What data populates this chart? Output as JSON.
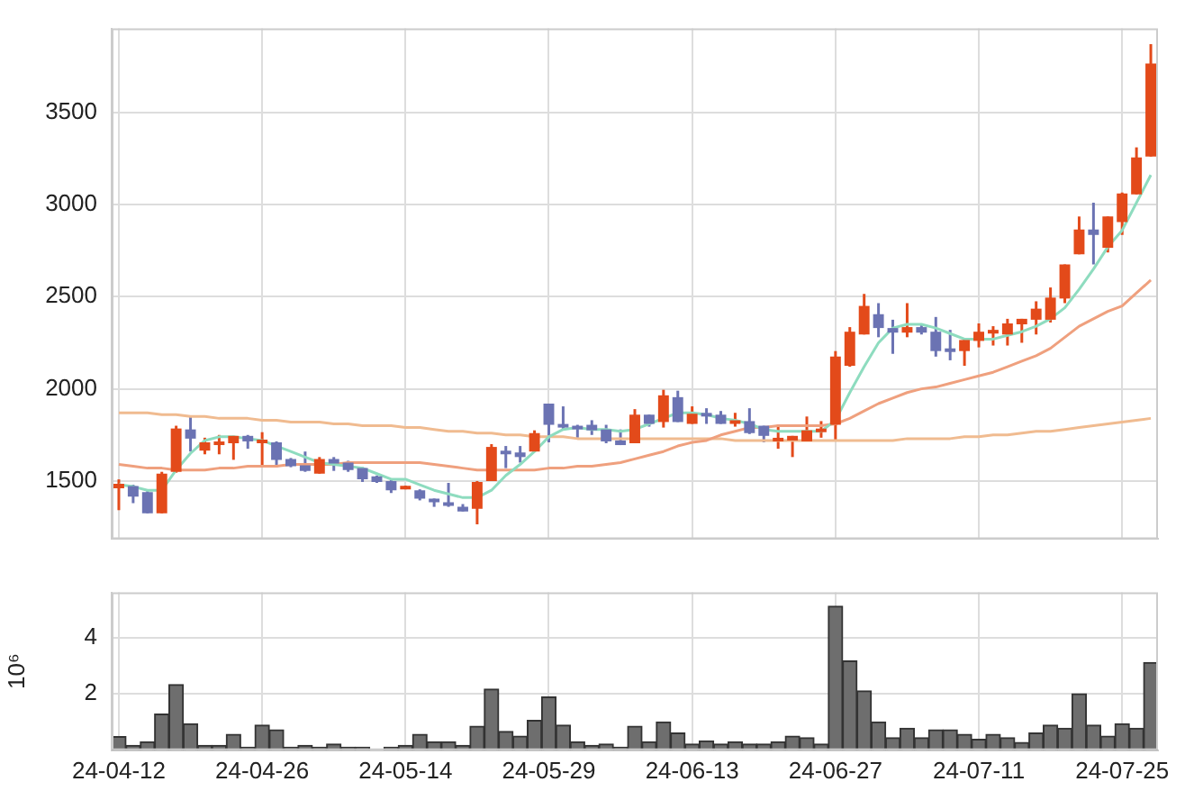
{
  "chart_data": [
    {
      "type": "candlestick",
      "categories": [
        null,
        null,
        null,
        null,
        null,
        null,
        null,
        null,
        null,
        null,
        null,
        null,
        null,
        null,
        null,
        null,
        null,
        null,
        null,
        null,
        null,
        null,
        null,
        null,
        null,
        null,
        null,
        null,
        null,
        null,
        null,
        null,
        null,
        null,
        null,
        null,
        null,
        null,
        null,
        null,
        null,
        null,
        null,
        null,
        null,
        null,
        null,
        null,
        null,
        null,
        null,
        null,
        null,
        null,
        null,
        null,
        null,
        null,
        null,
        null,
        null,
        null,
        null,
        null,
        null,
        null,
        null,
        null,
        null,
        null,
        null,
        null,
        null
      ],
      "ohlc": [
        [
          1461,
          1509,
          1342,
          1485
        ],
        [
          1473,
          1480,
          1380,
          1415
        ],
        [
          1440,
          1445,
          1325,
          1325
        ],
        [
          1325,
          1550,
          1325,
          1540
        ],
        [
          1550,
          1800,
          1545,
          1785
        ],
        [
          1780,
          1855,
          1660,
          1730
        ],
        [
          1665,
          1735,
          1645,
          1710
        ],
        [
          1695,
          1750,
          1645,
          1710
        ],
        [
          1705,
          1745,
          1615,
          1745
        ],
        [
          1745,
          1750,
          1675,
          1715
        ],
        [
          1705,
          1765,
          1585,
          1715
        ],
        [
          1710,
          1715,
          1575,
          1615
        ],
        [
          1620,
          1625,
          1575,
          1580
        ],
        [
          1585,
          1660,
          1550,
          1555
        ],
        [
          1540,
          1630,
          1540,
          1620
        ],
        [
          1620,
          1630,
          1555,
          1595
        ],
        [
          1600,
          1610,
          1550,
          1560
        ],
        [
          1570,
          1575,
          1495,
          1510
        ],
        [
          1525,
          1530,
          1490,
          1495
        ],
        [
          1500,
          1505,
          1435,
          1450
        ],
        [
          1455,
          1475,
          1455,
          1465
        ],
        [
          1450,
          1455,
          1395,
          1405
        ],
        [
          1405,
          1405,
          1360,
          1385
        ],
        [
          1380,
          1490,
          1360,
          1365
        ],
        [
          1360,
          1375,
          1335,
          1335
        ],
        [
          1350,
          1500,
          1265,
          1495
        ],
        [
          1500,
          1700,
          1500,
          1685
        ],
        [
          1660,
          1690,
          1570,
          1645
        ],
        [
          1655,
          1690,
          1600,
          1630
        ],
        [
          1660,
          1775,
          1660,
          1760
        ],
        [
          1920,
          1920,
          1710,
          1805
        ],
        [
          1805,
          1905,
          1780,
          1790
        ],
        [
          1800,
          1805,
          1735,
          1780
        ],
        [
          1805,
          1830,
          1750,
          1775
        ],
        [
          1780,
          1805,
          1705,
          1715
        ],
        [
          1720,
          1780,
          1695,
          1695
        ],
        [
          1705,
          1890,
          1705,
          1860
        ],
        [
          1860,
          1860,
          1795,
          1810
        ],
        [
          1820,
          1995,
          1790,
          1965
        ],
        [
          1955,
          1990,
          1820,
          1820
        ],
        [
          1810,
          1905,
          1810,
          1865
        ],
        [
          1865,
          1895,
          1810,
          1850
        ],
        [
          1860,
          1880,
          1810,
          1810
        ],
        [
          1810,
          1870,
          1795,
          1825
        ],
        [
          1825,
          1895,
          1755,
          1760
        ],
        [
          1800,
          1800,
          1710,
          1745
        ],
        [
          1715,
          1805,
          1675,
          1730
        ],
        [
          1720,
          1745,
          1630,
          1745
        ],
        [
          1715,
          1850,
          1715,
          1775
        ],
        [
          1765,
          1825,
          1735,
          1775
        ],
        [
          1805,
          2205,
          1720,
          2175
        ],
        [
          2125,
          2335,
          2120,
          2310
        ],
        [
          2295,
          2515,
          2295,
          2450
        ],
        [
          2405,
          2465,
          2280,
          2330
        ],
        [
          2330,
          2375,
          2190,
          2305
        ],
        [
          2305,
          2465,
          2280,
          2335
        ],
        [
          2335,
          2345,
          2295,
          2305
        ],
        [
          2310,
          2390,
          2175,
          2205
        ],
        [
          2210,
          2320,
          2155,
          2200
        ],
        [
          2205,
          2275,
          2125,
          2265
        ],
        [
          2260,
          2355,
          2225,
          2310
        ],
        [
          2300,
          2340,
          2235,
          2320
        ],
        [
          2295,
          2380,
          2235,
          2355
        ],
        [
          2350,
          2380,
          2250,
          2380
        ],
        [
          2375,
          2475,
          2295,
          2435
        ],
        [
          2375,
          2550,
          2360,
          2495
        ],
        [
          2490,
          2675,
          2465,
          2675
        ],
        [
          2730,
          2935,
          2730,
          2865
        ],
        [
          2865,
          3010,
          2675,
          2835
        ],
        [
          2765,
          2935,
          2740,
          2935
        ],
        [
          2905,
          3065,
          2835,
          3060
        ],
        [
          3055,
          3310,
          3055,
          3255
        ],
        [
          3260,
          3870,
          3260,
          3765
        ]
      ],
      "colors": [
        "#e34a1a",
        "#6b73b3",
        "#6b73b3",
        "#e34a1a",
        "#e34a1a",
        "#6b73b3",
        "#e34a1a",
        "#e34a1a",
        "#e34a1a",
        "#6b73b3",
        "#e34a1a",
        "#6b73b3",
        "#6b73b3",
        "#6b73b3",
        "#e34a1a",
        "#6b73b3",
        "#6b73b3",
        "#6b73b3",
        "#6b73b3",
        "#6b73b3",
        "#e34a1a",
        "#6b73b3",
        "#6b73b3",
        "#6b73b3",
        "#6b73b3",
        "#e34a1a",
        "#e34a1a",
        "#6b73b3",
        "#6b73b3",
        "#e34a1a",
        "#6b73b3",
        "#6b73b3",
        "#6b73b3",
        "#6b73b3",
        "#6b73b3",
        "#6b73b3",
        "#e34a1a",
        "#6b73b3",
        "#e34a1a",
        "#6b73b3",
        "#e34a1a",
        "#6b73b3",
        "#6b73b3",
        "#e34a1a",
        "#6b73b3",
        "#6b73b3",
        "#e34a1a",
        "#e34a1a",
        "#e34a1a",
        "#e34a1a",
        "#e34a1a",
        "#e34a1a",
        "#e34a1a",
        "#6b73b3",
        "#6b73b3",
        "#e34a1a",
        "#6b73b3",
        "#6b73b3",
        "#6b73b3",
        "#e34a1a",
        "#e34a1a",
        "#e34a1a",
        "#e34a1a",
        "#e34a1a",
        "#e34a1a",
        "#e34a1a",
        "#e34a1a",
        "#e34a1a",
        "#6b73b3",
        "#e34a1a",
        "#e34a1a",
        "#e34a1a",
        "#e34a1a"
      ],
      "series": [
        {
          "type": "line",
          "color": "#8edcbf",
          "values": [
            1480,
            1470,
            1450,
            1450,
            1560,
            1650,
            1720,
            1740,
            1740,
            1730,
            1720,
            1690,
            1660,
            1630,
            1600,
            1590,
            1580,
            1570,
            1540,
            1510,
            1510,
            1480,
            1450,
            1430,
            1410,
            1410,
            1450,
            1530,
            1590,
            1660,
            1740,
            1780,
            1790,
            1780,
            1780,
            1770,
            1780,
            1810,
            1840,
            1870,
            1870,
            1860,
            1840,
            1830,
            1810,
            1780,
            1770,
            1770,
            1770,
            1770,
            1830,
            1980,
            2120,
            2250,
            2330,
            2350,
            2350,
            2330,
            2300,
            2270,
            2270,
            2270,
            2290,
            2310,
            2340,
            2380,
            2440,
            2540,
            2650,
            2770,
            2860,
            3010,
            3160
          ]
        },
        {
          "type": "line",
          "color": "#efa07e",
          "values": [
            1590,
            1580,
            1570,
            1570,
            1560,
            1560,
            1560,
            1570,
            1570,
            1580,
            1580,
            1580,
            1590,
            1590,
            1590,
            1590,
            1600,
            1600,
            1600,
            1600,
            1600,
            1600,
            1590,
            1580,
            1570,
            1560,
            1560,
            1560,
            1560,
            1560,
            1570,
            1570,
            1580,
            1580,
            1590,
            1600,
            1620,
            1640,
            1660,
            1690,
            1710,
            1720,
            1750,
            1770,
            1790,
            1790,
            1800,
            1800,
            1800,
            1800,
            1810,
            1840,
            1880,
            1920,
            1950,
            1980,
            2000,
            2010,
            2030,
            2050,
            2070,
            2090,
            2120,
            2150,
            2180,
            2220,
            2280,
            2340,
            2380,
            2420,
            2450,
            2520,
            2590
          ]
        },
        {
          "type": "line",
          "color": "#f0bb90",
          "values": [
            1870,
            1870,
            1870,
            1860,
            1860,
            1850,
            1850,
            1840,
            1840,
            1840,
            1830,
            1830,
            1820,
            1820,
            1820,
            1810,
            1810,
            1800,
            1800,
            1800,
            1790,
            1790,
            1780,
            1770,
            1770,
            1760,
            1760,
            1750,
            1750,
            1740,
            1740,
            1740,
            1730,
            1730,
            1730,
            1730,
            1730,
            1730,
            1730,
            1730,
            1730,
            1730,
            1730,
            1720,
            1720,
            1720,
            1720,
            1720,
            1720,
            1720,
            1720,
            1720,
            1720,
            1720,
            1720,
            1730,
            1730,
            1730,
            1730,
            1740,
            1740,
            1750,
            1750,
            1760,
            1770,
            1770,
            1780,
            1790,
            1800,
            1810,
            1820,
            1830,
            1840
          ]
        }
      ],
      "ylim": [
        1185,
        3955
      ],
      "yticks": [
        1500,
        2000,
        2500,
        3000,
        3500
      ],
      "grid": true,
      "tick_labels": "y"
    },
    {
      "type": "bar",
      "categories": [
        "24-04-12",
        null,
        null,
        null,
        null,
        null,
        null,
        null,
        null,
        null,
        "24-04-26",
        null,
        null,
        null,
        null,
        null,
        null,
        null,
        null,
        null,
        "24-05-14",
        null,
        null,
        null,
        null,
        null,
        null,
        null,
        null,
        null,
        "24-05-29",
        null,
        null,
        null,
        null,
        null,
        null,
        null,
        null,
        null,
        "24-06-13",
        null,
        null,
        null,
        null,
        null,
        null,
        null,
        null,
        null,
        "24-06-27",
        null,
        null,
        null,
        null,
        null,
        null,
        null,
        null,
        null,
        "24-07-11",
        null,
        null,
        null,
        null,
        null,
        null,
        null,
        null,
        null,
        "24-07-25",
        null,
        null
      ],
      "values": [
        0.48,
        0.17,
        0.3,
        1.28,
        2.33,
        0.94,
        0.17,
        0.17,
        0.56,
        0.11,
        0.89,
        0.72,
        0.11,
        0.17,
        0.11,
        0.22,
        0.11,
        0.11,
        0,
        0.11,
        0.17,
        0.56,
        0.3,
        0.3,
        0.17,
        0.85,
        2.17,
        0.67,
        0.5,
        1.06,
        1.89,
        0.89,
        0.3,
        0.17,
        0.22,
        0.11,
        0.85,
        0.3,
        1.0,
        0.61,
        0.22,
        0.33,
        0.22,
        0.3,
        0.22,
        0.22,
        0.3,
        0.5,
        0.44,
        0.22,
        5.11,
        3.17,
        2.11,
        1.0,
        0.44,
        0.78,
        0.44,
        0.72,
        0.72,
        0.56,
        0.39,
        0.56,
        0.44,
        0.28,
        0.61,
        0.89,
        0.78,
        2.0,
        0.89,
        0.5,
        0.94,
        0.78,
        3.11
      ],
      "color": "#6e6e6e",
      "ylabel": "10⁶",
      "ylim": [
        0,
        5.6
      ],
      "yticks": [
        2,
        4
      ],
      "grid": true
    }
  ]
}
